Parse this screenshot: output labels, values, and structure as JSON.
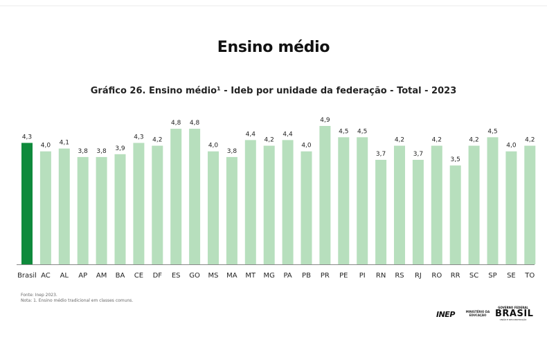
{
  "page": {
    "title": "Ensino médio",
    "source": "Fonte: Inep 2023.",
    "note": "Nota: 1. Ensino médio tradicional em classes comuns."
  },
  "logos": {
    "inep": "INEP",
    "mec": "MINISTÉRIO DA EDUCAÇÃO",
    "gov_line1": "GOVERNO FEDERAL",
    "gov_line2": "BRASIL",
    "gov_line3": "UNIÃO E RECONSTRUÇÃO"
  },
  "colors": {
    "highlight_bar": "#0f8a3c",
    "bar": "#b7dfbd",
    "text": "#222222",
    "baseline": "#888888"
  },
  "chart_data": {
    "type": "bar",
    "title": "Gráfico 26. Ensino médio¹ - Ideb por unidade da federação - Total - 2023",
    "xlabel": "",
    "ylabel": "",
    "ylim": [
      0,
      4.9
    ],
    "grid": false,
    "legend": "none",
    "highlight_category": "Brasil",
    "categories": [
      "Brasil",
      "AC",
      "AL",
      "AP",
      "AM",
      "BA",
      "CE",
      "DF",
      "ES",
      "GO",
      "MS",
      "MA",
      "MT",
      "MG",
      "PA",
      "PB",
      "PR",
      "PE",
      "PI",
      "RN",
      "RS",
      "RJ",
      "RO",
      "RR",
      "SC",
      "SP",
      "SE",
      "TO"
    ],
    "values": [
      4.3,
      4.0,
      4.1,
      3.8,
      3.8,
      3.9,
      4.3,
      4.2,
      4.8,
      4.8,
      4.0,
      3.8,
      4.4,
      4.2,
      4.4,
      4.0,
      4.9,
      4.5,
      4.5,
      3.7,
      4.2,
      3.7,
      4.2,
      3.5,
      4.2,
      4.5,
      4.0,
      4.2
    ],
    "value_labels": [
      "4,3",
      "4,0",
      "4,1",
      "3,8",
      "3,8",
      "3,9",
      "4,3",
      "4,2",
      "4,8",
      "4,8",
      "4,0",
      "3,8",
      "4,4",
      "4,2",
      "4,4",
      "4,0",
      "4,9",
      "4,5",
      "4,5",
      "3,7",
      "4,2",
      "3,7",
      "4,2",
      "3,5",
      "4,2",
      "4,5",
      "4,0",
      "4,2"
    ]
  }
}
